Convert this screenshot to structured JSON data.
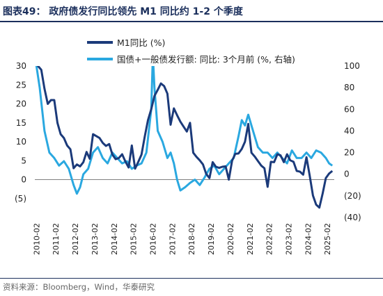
{
  "header": {
    "title": "图表49：  政府债发行同比领先 M1 同比约 1-2 个季度"
  },
  "footer": {
    "source": "资料来源：Bloomberg，Wind，华泰研究"
  },
  "chart_data": {
    "type": "line",
    "title": "",
    "xlabel": "",
    "ylabel": "",
    "x_ticks": [
      "2010-02",
      "2011-02",
      "2012-02",
      "2013-02",
      "2014-02",
      "2015-02",
      "2016-02",
      "2017-02",
      "2018-02",
      "2019-02",
      "2020-02",
      "2021-02",
      "2022-02",
      "2023-02",
      "2024-02",
      "2025-02"
    ],
    "y_left": {
      "ylim": [
        -10,
        30
      ],
      "ticks": [
        30,
        25,
        20,
        15,
        10,
        5,
        0,
        -5
      ],
      "tick_labels": [
        "30",
        "25",
        "20",
        "15",
        "10",
        "5",
        "0",
        "(5)"
      ]
    },
    "y_right": {
      "ylim": [
        -40,
        100
      ],
      "ticks": [
        100,
        80,
        60,
        40,
        20,
        0,
        -20,
        -40
      ],
      "tick_labels": [
        "100",
        "80",
        "60",
        "40",
        "20",
        "0",
        "(20)",
        "(40)"
      ]
    },
    "legend_position": "top",
    "series": [
      {
        "name": "M1同比 (%)",
        "axis": "left",
        "color": "#1b3a7a",
        "points": [
          [
            "2010-01",
            39
          ],
          [
            "2010-03",
            30
          ],
          [
            "2010-05",
            29
          ],
          [
            "2010-07",
            24
          ],
          [
            "2010-09",
            20
          ],
          [
            "2010-11",
            21
          ],
          [
            "2011-01",
            21
          ],
          [
            "2011-03",
            15
          ],
          [
            "2011-05",
            12
          ],
          [
            "2011-07",
            11
          ],
          [
            "2011-09",
            9
          ],
          [
            "2011-11",
            8
          ],
          [
            "2012-01",
            3
          ],
          [
            "2012-03",
            4
          ],
          [
            "2012-05",
            3.5
          ],
          [
            "2012-07",
            4.6
          ],
          [
            "2012-09",
            7.3
          ],
          [
            "2012-11",
            5.5
          ],
          [
            "2013-01",
            12
          ],
          [
            "2013-03",
            11.5
          ],
          [
            "2013-05",
            11
          ],
          [
            "2013-07",
            9.7
          ],
          [
            "2013-09",
            8.9
          ],
          [
            "2013-11",
            9.4
          ],
          [
            "2014-01",
            6.6
          ],
          [
            "2014-03",
            5.4
          ],
          [
            "2014-05",
            5.7
          ],
          [
            "2014-07",
            6.7
          ],
          [
            "2014-09",
            4.8
          ],
          [
            "2014-11",
            3.2
          ],
          [
            "2015-01",
            9
          ],
          [
            "2015-03",
            2.9
          ],
          [
            "2015-05",
            4.7
          ],
          [
            "2015-07",
            6.6
          ],
          [
            "2015-09",
            11.4
          ],
          [
            "2015-11",
            15.7
          ],
          [
            "2016-01",
            18.6
          ],
          [
            "2016-03",
            22.1
          ],
          [
            "2016-05",
            23.7
          ],
          [
            "2016-07",
            25.4
          ],
          [
            "2016-09",
            24.7
          ],
          [
            "2016-11",
            22.7
          ],
          [
            "2017-01",
            14.5
          ],
          [
            "2017-03",
            18.8
          ],
          [
            "2017-05",
            17
          ],
          [
            "2017-07",
            15.3
          ],
          [
            "2017-09",
            14
          ],
          [
            "2017-11",
            12.7
          ],
          [
            "2018-01",
            15
          ],
          [
            "2018-03",
            7.1
          ],
          [
            "2018-05",
            6
          ],
          [
            "2018-07",
            5.1
          ],
          [
            "2018-09",
            4
          ],
          [
            "2018-11",
            1.5
          ],
          [
            "2019-01",
            0.4
          ],
          [
            "2019-03",
            4.6
          ],
          [
            "2019-05",
            3.4
          ],
          [
            "2019-07",
            3.1
          ],
          [
            "2019-09",
            3.4
          ],
          [
            "2019-11",
            3.5
          ],
          [
            "2020-01",
            0
          ],
          [
            "2020-03",
            5
          ],
          [
            "2020-05",
            6.8
          ],
          [
            "2020-07",
            6.9
          ],
          [
            "2020-09",
            8.1
          ],
          [
            "2020-11",
            10
          ],
          [
            "2021-01",
            14.7
          ],
          [
            "2021-03",
            7.1
          ],
          [
            "2021-05",
            6.1
          ],
          [
            "2021-07",
            4.9
          ],
          [
            "2021-09",
            3.7
          ],
          [
            "2021-11",
            3
          ],
          [
            "2022-01",
            -1.9
          ],
          [
            "2022-03",
            4.7
          ],
          [
            "2022-05",
            4.6
          ],
          [
            "2022-07",
            6.7
          ],
          [
            "2022-09",
            6.4
          ],
          [
            "2022-11",
            4.6
          ],
          [
            "2023-01",
            6.7
          ],
          [
            "2023-03",
            5.1
          ],
          [
            "2023-05",
            4.7
          ],
          [
            "2023-07",
            2.3
          ],
          [
            "2023-09",
            2.1
          ],
          [
            "2023-11",
            1.3
          ],
          [
            "2024-01",
            5.9
          ],
          [
            "2024-03",
            1.1
          ],
          [
            "2024-05",
            -4.2
          ],
          [
            "2024-07",
            -6.6
          ],
          [
            "2024-09",
            -7.4
          ],
          [
            "2024-11",
            -3.7
          ],
          [
            "2025-01",
            0.4
          ],
          [
            "2025-03",
            1.6
          ],
          [
            "2025-05",
            2.3
          ]
        ]
      },
      {
        "name": "国债+一般债发行额: 同比: 3个月前 (%, 右轴)",
        "axis": "right",
        "color": "#2aa8e0",
        "points": [
          [
            "2010-01",
            110
          ],
          [
            "2010-04",
            80
          ],
          [
            "2010-07",
            40
          ],
          [
            "2010-10",
            20
          ],
          [
            "2011-01",
            15
          ],
          [
            "2011-04",
            8
          ],
          [
            "2011-07",
            12
          ],
          [
            "2011-10",
            5
          ],
          [
            "2012-01",
            -10
          ],
          [
            "2012-03",
            -18
          ],
          [
            "2012-05",
            -12
          ],
          [
            "2012-07",
            0
          ],
          [
            "2012-10",
            5
          ],
          [
            "2013-01",
            20
          ],
          [
            "2013-04",
            25
          ],
          [
            "2013-07",
            15
          ],
          [
            "2013-10",
            10
          ],
          [
            "2014-01",
            20
          ],
          [
            "2014-04",
            15
          ],
          [
            "2014-07",
            10
          ],
          [
            "2014-10",
            12
          ],
          [
            "2015-01",
            5
          ],
          [
            "2015-04",
            8
          ],
          [
            "2015-07",
            10
          ],
          [
            "2015-10",
            20
          ],
          [
            "2016-01",
            60
          ],
          [
            "2016-02",
            110
          ],
          [
            "2016-03",
            80
          ],
          [
            "2016-05",
            40
          ],
          [
            "2016-08",
            30
          ],
          [
            "2016-11",
            15
          ],
          [
            "2017-01",
            20
          ],
          [
            "2017-03",
            10
          ],
          [
            "2017-05",
            -5
          ],
          [
            "2017-07",
            -15
          ],
          [
            "2017-10",
            -12
          ],
          [
            "2018-01",
            -8
          ],
          [
            "2018-04",
            -5
          ],
          [
            "2018-07",
            -10
          ],
          [
            "2018-10",
            -3
          ],
          [
            "2019-01",
            5
          ],
          [
            "2019-04",
            8
          ],
          [
            "2019-07",
            0
          ],
          [
            "2019-10",
            5
          ],
          [
            "2020-01",
            10
          ],
          [
            "2020-04",
            15
          ],
          [
            "2020-07",
            35
          ],
          [
            "2020-09",
            50
          ],
          [
            "2020-11",
            45
          ],
          [
            "2021-01",
            55
          ],
          [
            "2021-04",
            40
          ],
          [
            "2021-07",
            25
          ],
          [
            "2021-10",
            20
          ],
          [
            "2022-01",
            20
          ],
          [
            "2022-04",
            15
          ],
          [
            "2022-07",
            20
          ],
          [
            "2022-10",
            15
          ],
          [
            "2023-01",
            10
          ],
          [
            "2023-04",
            22
          ],
          [
            "2023-07",
            15
          ],
          [
            "2023-10",
            15
          ],
          [
            "2024-01",
            20
          ],
          [
            "2024-04",
            15
          ],
          [
            "2024-07",
            22
          ],
          [
            "2024-10",
            20
          ],
          [
            "2025-01",
            15
          ],
          [
            "2025-03",
            10
          ],
          [
            "2025-05",
            8
          ]
        ]
      }
    ]
  }
}
